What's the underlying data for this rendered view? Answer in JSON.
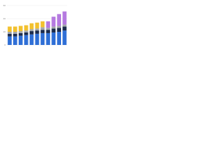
{
  "chart_data": {
    "type": "bar",
    "stacked": true,
    "categories": [
      null,
      null,
      null,
      null,
      null,
      null,
      null,
      null,
      null,
      null,
      null
    ],
    "series": [
      {
        "color": "#2f6fd6",
        "values": [
          13,
          13,
          14,
          15,
          16,
          17,
          18,
          18,
          19,
          20,
          22
        ]
      },
      {
        "color": "#1b2b4d",
        "values": [
          4,
          4,
          4,
          4,
          5,
          5,
          5,
          5,
          6,
          6,
          6
        ]
      },
      {
        "color": "#a3a7ab",
        "values": [
          3,
          3,
          3,
          3,
          3,
          3,
          4,
          3,
          3,
          3,
          3
        ]
      },
      {
        "color": "#f2c12e",
        "values": [
          8,
          8,
          8,
          8,
          9,
          9,
          9,
          null,
          null,
          null,
          null
        ]
      },
      {
        "color": "#b57ae0",
        "values": [
          null,
          null,
          null,
          null,
          null,
          null,
          null,
          10,
          15,
          18,
          20
        ]
      }
    ],
    "ylim": [
      0,
      60
    ],
    "yticks": [
      0,
      20,
      40,
      60
    ],
    "grid": true
  }
}
